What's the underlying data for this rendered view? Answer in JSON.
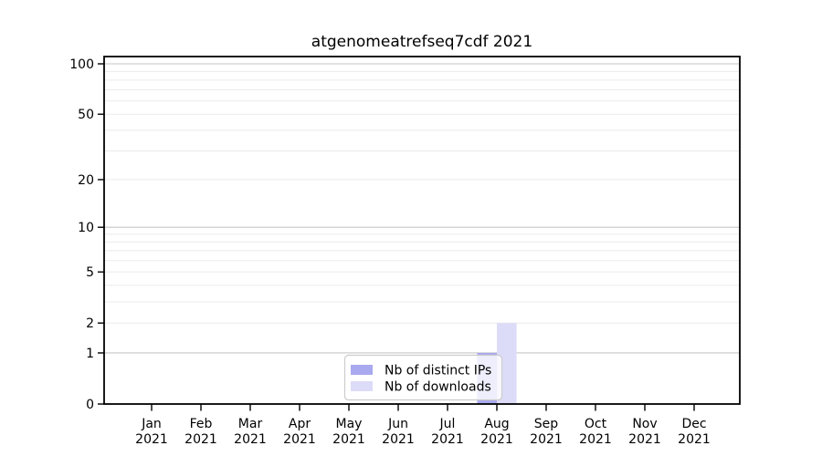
{
  "chart_data": {
    "type": "bar",
    "title": "atgenomeatrefseq7cdf 2021",
    "categories": [
      {
        "month": "Jan",
        "year": "2021"
      },
      {
        "month": "Feb",
        "year": "2021"
      },
      {
        "month": "Mar",
        "year": "2021"
      },
      {
        "month": "Apr",
        "year": "2021"
      },
      {
        "month": "May",
        "year": "2021"
      },
      {
        "month": "Jun",
        "year": "2021"
      },
      {
        "month": "Jul",
        "year": "2021"
      },
      {
        "month": "Aug",
        "year": "2021"
      },
      {
        "month": "Sep",
        "year": "2021"
      },
      {
        "month": "Oct",
        "year": "2021"
      },
      {
        "month": "Nov",
        "year": "2021"
      },
      {
        "month": "Dec",
        "year": "2021"
      }
    ],
    "series": [
      {
        "name": "Nb of distinct IPs",
        "color": "#a9a9ef",
        "values": [
          0,
          0,
          0,
          0,
          0,
          0,
          0,
          1,
          0,
          0,
          0,
          0
        ]
      },
      {
        "name": "Nb of downloads",
        "color": "#dcdcf8",
        "values": [
          0,
          0,
          0,
          0,
          0,
          0,
          0,
          2,
          0,
          0,
          0,
          0
        ]
      }
    ],
    "y_axis": {
      "scale": "log1p",
      "tick_values": [
        0,
        1,
        2,
        5,
        10,
        20,
        50,
        100
      ],
      "major_grid_values": [
        1,
        10,
        100
      ],
      "minor_grid_values": [
        2,
        3,
        4,
        5,
        6,
        7,
        8,
        9,
        20,
        30,
        40,
        50,
        60,
        70,
        80,
        90
      ],
      "ylim": [
        0,
        111
      ]
    },
    "xlabel": "",
    "ylabel": "",
    "grid": true,
    "legend_position": "lower center"
  }
}
